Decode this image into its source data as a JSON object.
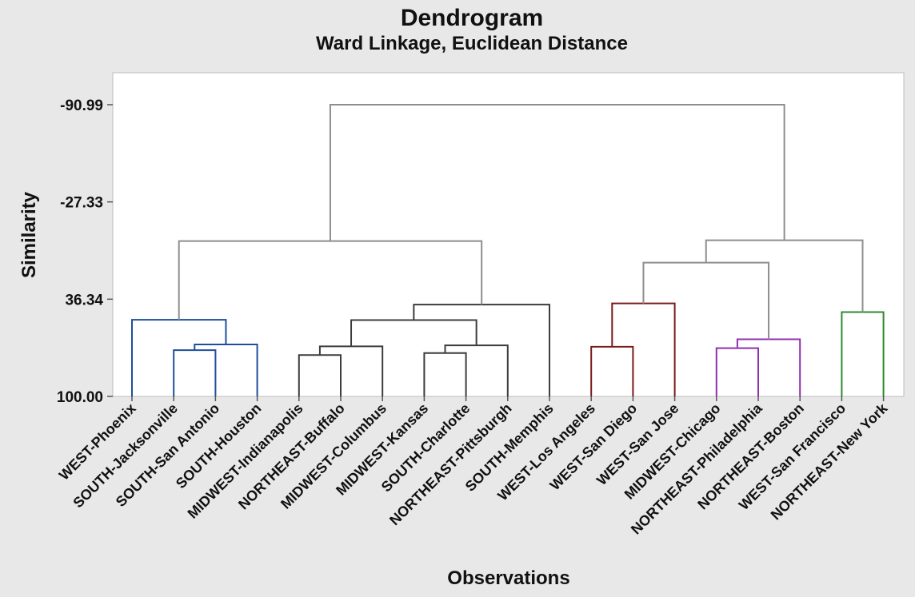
{
  "chart_data": {
    "type": "dendrogram",
    "title": "Dendrogram",
    "subtitle": "Ward Linkage, Euclidean Distance",
    "xlabel": "Observations",
    "ylabel": "Similarity",
    "y_ticks": [
      {
        "label": "-90.99",
        "value": -90.99
      },
      {
        "label": "-27.33",
        "value": -27.33
      },
      {
        "label": "36.34",
        "value": 36.34
      },
      {
        "label": "100.00",
        "value": 100.0
      }
    ],
    "ylim": [
      100.0,
      -97.0
    ],
    "observations": [
      "WEST-Phoenix",
      "SOUTH-Jacksonville",
      "SOUTH-San Antonio",
      "SOUTH-Houston",
      "MIDWEST-Indianapolis",
      "NORTHEAST-Buffalo",
      "MIDWEST-Columbus",
      "MIDWEST-Kansas",
      "SOUTH-Charlotte",
      "NORTHEAST-Pittsburgh",
      "SOUTH-Memphis",
      "WEST-Los Angeles",
      "WEST-San Diego",
      "WEST-San Jose",
      "MIDWEST-Chicago",
      "NORTHEAST-Philadelphia",
      "NORTHEAST-Boston",
      "WEST-San Francisco",
      "NORTHEAST-New York"
    ],
    "merges": [
      {
        "id": "m1",
        "children": [
          "SOUTH-Jacksonville",
          "SOUTH-San Antonio"
        ],
        "similarity": 69.7,
        "cluster_color": "#1f4e9a"
      },
      {
        "id": "m2",
        "children": [
          "m1",
          "SOUTH-Houston"
        ],
        "similarity": 66.0,
        "cluster_color": "#1f4e9a"
      },
      {
        "id": "m3",
        "children": [
          "WEST-Phoenix",
          "m2"
        ],
        "similarity": 49.8,
        "cluster_color": "#1f4e9a"
      },
      {
        "id": "m4",
        "children": [
          "MIDWEST-Indianapolis",
          "NORTHEAST-Buffalo"
        ],
        "similarity": 72.9,
        "cluster_color": "#3c3c3c"
      },
      {
        "id": "m5",
        "children": [
          "m4",
          "MIDWEST-Columbus"
        ],
        "similarity": 67.2,
        "cluster_color": "#3c3c3c"
      },
      {
        "id": "m6",
        "children": [
          "MIDWEST-Kansas",
          "SOUTH-Charlotte"
        ],
        "similarity": 71.6,
        "cluster_color": "#3c3c3c"
      },
      {
        "id": "m7",
        "children": [
          "m6",
          "NORTHEAST-Pittsburgh"
        ],
        "similarity": 66.6,
        "cluster_color": "#3c3c3c"
      },
      {
        "id": "m8",
        "children": [
          "m5",
          "m7"
        ],
        "similarity": 50.0,
        "cluster_color": "#3c3c3c"
      },
      {
        "id": "m9",
        "children": [
          "m8",
          "SOUTH-Memphis"
        ],
        "similarity": 39.9,
        "cluster_color": "#3c3c3c"
      },
      {
        "id": "m10",
        "children": [
          "WEST-Los Angeles",
          "WEST-San Diego"
        ],
        "similarity": 67.5,
        "cluster_color": "#7a1a1a"
      },
      {
        "id": "m11",
        "children": [
          "m10",
          "WEST-San Jose"
        ],
        "similarity": 39.1,
        "cluster_color": "#7a1a1a"
      },
      {
        "id": "m12",
        "children": [
          "MIDWEST-Chicago",
          "NORTHEAST-Philadelphia"
        ],
        "similarity": 68.4,
        "cluster_color": "#8e2fb3"
      },
      {
        "id": "m13",
        "children": [
          "m12",
          "NORTHEAST-Boston"
        ],
        "similarity": 62.6,
        "cluster_color": "#8e2fb3"
      },
      {
        "id": "m14",
        "children": [
          "m3",
          "m9"
        ],
        "similarity": -1.7,
        "cluster_color": "#8e8e8e"
      },
      {
        "id": "m15",
        "children": [
          "m11",
          "m13"
        ],
        "similarity": 12.4,
        "cluster_color": "#8e8e8e"
      },
      {
        "id": "m16",
        "children": [
          "WEST-San Francisco",
          "NORTHEAST-New York"
        ],
        "similarity": 44.8,
        "cluster_color": "#2d8a2d"
      },
      {
        "id": "m17",
        "children": [
          "m15",
          "m16"
        ],
        "similarity": -2.2,
        "cluster_color": "#8e8e8e"
      },
      {
        "id": "m18",
        "children": [
          "m14",
          "m17"
        ],
        "similarity": -90.99,
        "cluster_color": "#8e8e8e"
      }
    ],
    "grid": false,
    "legend": "none"
  }
}
